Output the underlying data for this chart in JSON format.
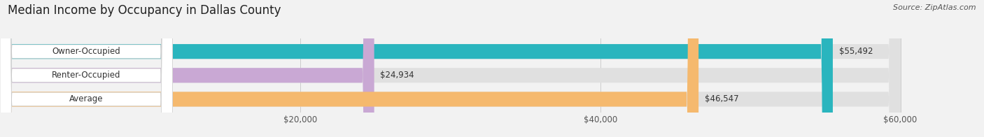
{
  "title": "Median Income by Occupancy in Dallas County",
  "source": "Source: ZipAtlas.com",
  "categories": [
    "Owner-Occupied",
    "Renter-Occupied",
    "Average"
  ],
  "values": [
    55492,
    24934,
    46547
  ],
  "bar_colors": [
    "#2ab5be",
    "#c9a8d4",
    "#f5b96e"
  ],
  "bar_labels": [
    "$55,492",
    "$24,934",
    "$46,547"
  ],
  "xlim": [
    0,
    60000
  ],
  "xticks": [
    20000,
    40000,
    60000
  ],
  "xticklabels": [
    "$20,000",
    "$40,000",
    "$60,000"
  ],
  "background_color": "#f2f2f2",
  "bar_bg_color": "#e0e0e0",
  "title_fontsize": 12,
  "label_fontsize": 8.5,
  "tick_fontsize": 8.5,
  "source_fontsize": 8
}
